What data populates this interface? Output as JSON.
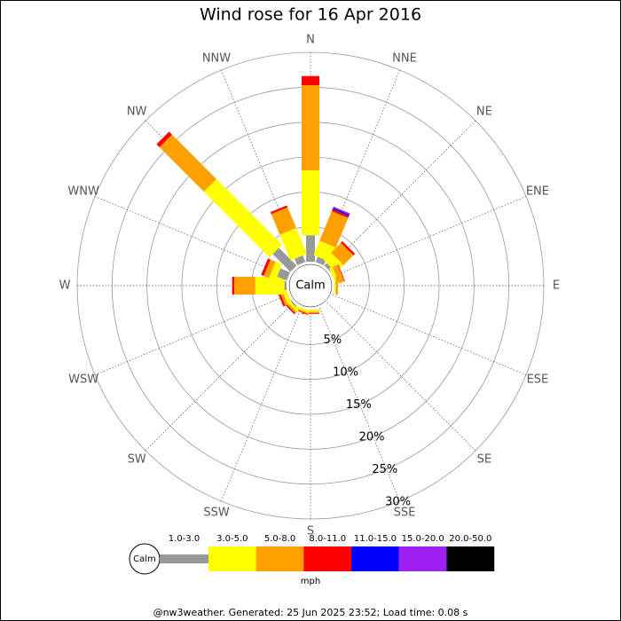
{
  "chart_data": {
    "type": "wind-rose",
    "title": "Wind rose for 16 Apr 2016",
    "categories": [
      "N",
      "NNE",
      "NE",
      "ENE",
      "E",
      "ESE",
      "SE",
      "SSE",
      "S",
      "SSW",
      "SW",
      "WSW",
      "W",
      "WNW",
      "NW",
      "NNW"
    ],
    "series": [
      {
        "name": "1.0-3.0",
        "color": "#999999",
        "values": [
          3.8,
          0.8,
          0.5,
          0,
          0,
          0,
          0,
          0,
          0,
          0,
          0.2,
          0,
          0.3,
          1.5,
          3.6,
          1.0
        ]
      },
      {
        "name": "3.0-5.0",
        "color": "#ffff00",
        "values": [
          9.3,
          2.2,
          1.5,
          0.5,
          0.2,
          0,
          0,
          0,
          0.3,
          0.3,
          0.4,
          0.6,
          4.2,
          1.0,
          13.3,
          4.0
        ]
      },
      {
        "name": "5.0-8.0",
        "color": "#ffa000",
        "values": [
          12.2,
          4.6,
          2.0,
          0.8,
          0.3,
          0,
          0,
          0,
          0.2,
          0.2,
          0.3,
          0.4,
          3.0,
          0.8,
          9.0,
          3.2
        ]
      },
      {
        "name": "8.0-11.0",
        "color": "#ff0000",
        "values": [
          1.3,
          0.3,
          0.3,
          0.1,
          0,
          0,
          0,
          0,
          0.1,
          0.1,
          0.2,
          0.3,
          0.3,
          0.4,
          0.6,
          0.3
        ]
      },
      {
        "name": "11.0-15.0",
        "color": "#0000ff",
        "values": [
          0,
          0.2,
          0,
          0,
          0,
          0,
          0,
          0,
          0,
          0,
          0,
          0,
          0,
          0,
          0,
          0
        ]
      },
      {
        "name": "15.0-20.0",
        "color": "#a020f0",
        "values": [
          0,
          0.2,
          0,
          0,
          0,
          0,
          0,
          0,
          0,
          0,
          0,
          0,
          0,
          0,
          0,
          0
        ]
      },
      {
        "name": "20.0-50.0",
        "color": "#000000",
        "values": [
          0,
          0,
          0,
          0,
          0,
          0,
          0,
          0,
          0,
          0,
          0,
          0,
          0,
          0,
          0,
          0
        ]
      }
    ],
    "rlim": [
      0,
      30
    ],
    "rticks": [
      {
        "value": 5,
        "label": "5%"
      },
      {
        "value": 10,
        "label": "10%"
      },
      {
        "value": 15,
        "label": "15%"
      },
      {
        "value": 20,
        "label": "20%"
      },
      {
        "value": 25,
        "label": "25%"
      },
      {
        "value": 30,
        "label": "30%"
      }
    ],
    "calm_label": "Calm",
    "unit": "mph",
    "footer": "@nw3weather. Generated: 25 Jun 2025 23:52; Load time: 0.08 s"
  }
}
